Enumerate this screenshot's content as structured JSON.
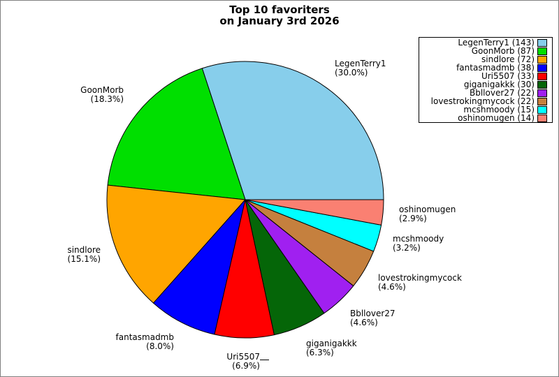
{
  "chart_data": {
    "type": "pie",
    "title_line1": "Top 10 favoriters",
    "title_line2": "on January 3rd 2026",
    "start_angle_deg": 0,
    "counterclockwise": true,
    "legend_position": "upper right",
    "slices": [
      {
        "name": "LegenTerry1",
        "count": 143,
        "pct_label": "(30.0%)",
        "color": "#87CEEB"
      },
      {
        "name": "GoonMorb",
        "count": 87,
        "pct_label": "(18.3%)",
        "color": "#00DF00"
      },
      {
        "name": "sindlore",
        "count": 72,
        "pct_label": "(15.1%)",
        "color": "#FFA500"
      },
      {
        "name": "fantasmadmb",
        "count": 38,
        "pct_label": "(8.0%)",
        "color": "#0000FF"
      },
      {
        "name": "Uri5507",
        "count": 33,
        "pct_label": "(6.9%)",
        "color": "#FF0000"
      },
      {
        "name": "giganigakkk",
        "count": 30,
        "pct_label": "(6.3%)",
        "color": "#056608"
      },
      {
        "name": "Bbllover27",
        "count": 22,
        "pct_label": "(4.6%)",
        "color": "#A020F0"
      },
      {
        "name": "lovestrokingmycock",
        "count": 22,
        "pct_label": "(4.6%)",
        "color": "#C5803E"
      },
      {
        "name": "mcshmoody",
        "count": 15,
        "pct_label": "(3.2%)",
        "color": "#00FFFF"
      },
      {
        "name": "oshinomugen",
        "count": 14,
        "pct_label": "(2.9%)",
        "color": "#FA8072"
      }
    ]
  }
}
